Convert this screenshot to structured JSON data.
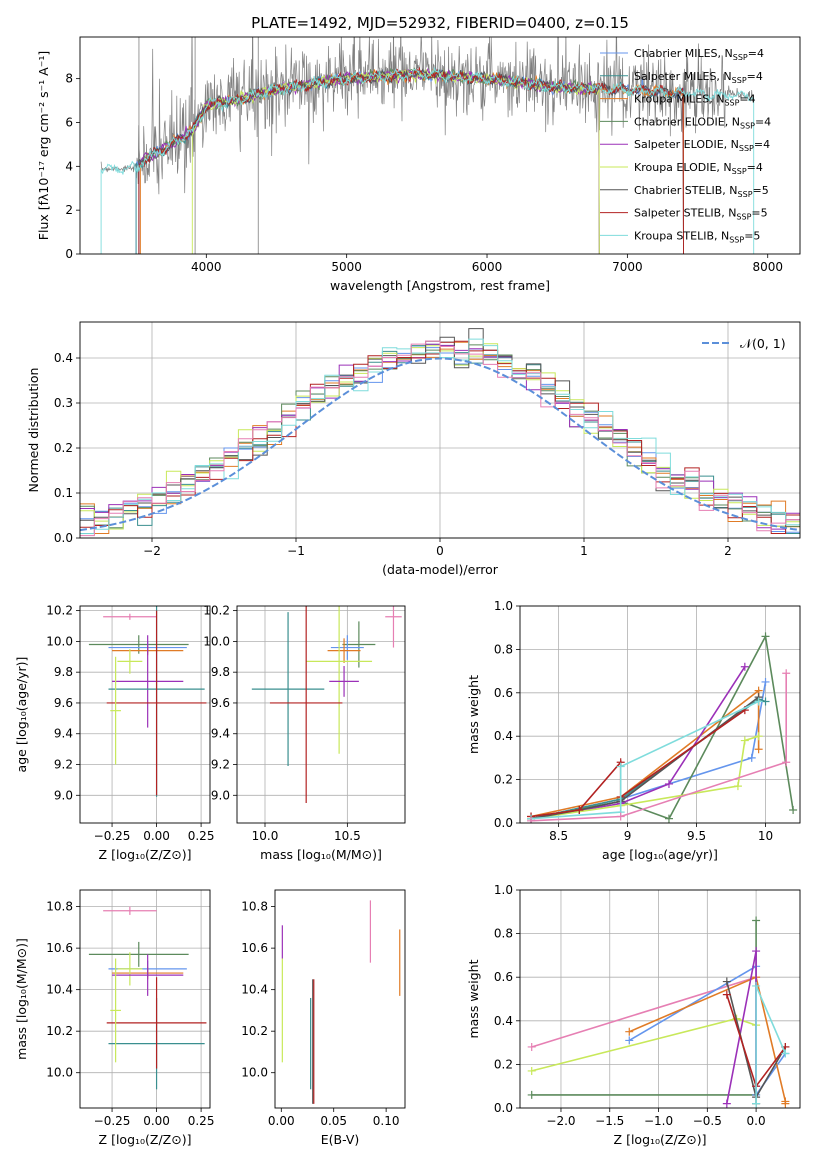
{
  "title": "PLATE=1492, MJD=52932, FIBERID=0400, z=0.15",
  "colors": {
    "Chabrier MILES": "#6495ed",
    "Salpeter MILES": "#3a8f8f",
    "Kroupa MILES": "#e07b26",
    "Chabrier ELODIE": "#5c8a5c",
    "Salpeter ELODIE": "#9b30b8",
    "Kroupa ELODIE": "#c8e85a",
    "Chabrier STELIB": "#555555",
    "Salpeter STELIB": "#b22222",
    "Kroupa STELIB": "#7fdcdc",
    "Kroupa STELIB b": "#e67fb3",
    "normal": "#5b8fd9"
  },
  "chart_data": [
    {
      "id": "spectrum",
      "type": "line",
      "xlabel": "wavelength [Angstrom, rest frame]",
      "ylabel": "Flux [fλ10⁻¹⁷ erg cm⁻² s⁻¹ A⁻¹]",
      "xlim": [
        3100,
        8230
      ],
      "ylim": [
        0,
        9.9
      ],
      "xticks": [
        4000,
        5000,
        6000,
        7000,
        8000
      ],
      "yticks": [
        0,
        2,
        4,
        6,
        8
      ],
      "legend_position": "top-right",
      "series": [
        {
          "name": "Chabrier MILES, N_SSP=4",
          "label": "Chabrier MILES, N",
          "sub": "SSP",
          "tail": "=4",
          "color": "#6495ed"
        },
        {
          "name": "Salpeter MILES, N_SSP=4",
          "label": "Salpeter MILES, N",
          "sub": "SSP",
          "tail": "=4",
          "color": "#3a8f8f"
        },
        {
          "name": "Kroupa MILES, N_SSP=4",
          "label": "Kroupa MILES, N",
          "sub": "SSP",
          "tail": "=4",
          "color": "#e07b26"
        },
        {
          "name": "Chabrier ELODIE, N_SSP=4",
          "label": "Chabrier ELODIE, N",
          "sub": "SSP",
          "tail": "=4",
          "color": "#5c8a5c"
        },
        {
          "name": "Salpeter ELODIE, N_SSP=4",
          "label": "Salpeter ELODIE, N",
          "sub": "SSP",
          "tail": "=4",
          "color": "#9b30b8"
        },
        {
          "name": "Kroupa ELODIE, N_SSP=4",
          "label": "Kroupa ELODIE, N",
          "sub": "SSP",
          "tail": "=4",
          "color": "#c8e85a"
        },
        {
          "name": "Chabrier STELIB, N_SSP=5",
          "label": "Chabrier STELIB, N",
          "sub": "SSP",
          "tail": "=5",
          "color": "#555555"
        },
        {
          "name": "Salpeter STELIB, N_SSP=5",
          "label": "Salpeter STELIB, N",
          "sub": "SSP",
          "tail": "=5",
          "color": "#b22222"
        },
        {
          "name": "Kroupa STELIB, N_SSP=5",
          "label": "Kroupa STELIB, N",
          "sub": "SSP",
          "tail": "=5",
          "color": "#7fdcdc"
        }
      ],
      "model_ranges": [
        [
          3500,
          7400
        ],
        [
          3500,
          7400
        ],
        [
          3530,
          7400
        ],
        [
          3520,
          6800
        ],
        [
          3520,
          6800
        ],
        [
          3900,
          6800
        ],
        [
          3520,
          7400
        ],
        [
          3520,
          7400
        ],
        [
          3250,
          7900
        ]
      ],
      "continuum_points": [
        [
          3250,
          3.9
        ],
        [
          3500,
          3.9
        ],
        [
          3550,
          4.3
        ],
        [
          3700,
          4.8
        ],
        [
          3900,
          5.6
        ],
        [
          4000,
          6.8
        ],
        [
          4200,
          7.0
        ],
        [
          4500,
          7.5
        ],
        [
          5000,
          8.0
        ],
        [
          5500,
          8.2
        ],
        [
          6000,
          8.0
        ],
        [
          6500,
          7.6
        ],
        [
          7000,
          7.5
        ],
        [
          7500,
          7.3
        ],
        [
          7900,
          7.2
        ]
      ]
    },
    {
      "id": "residuals",
      "type": "line",
      "xlabel": "(data-model)/error",
      "ylabel": "Normed distribution",
      "xlim": [
        -2.5,
        2.5
      ],
      "ylim": [
        0,
        0.48
      ],
      "xticks": [
        -2,
        -1,
        0,
        1,
        2
      ],
      "yticks": [
        0.0,
        0.1,
        0.2,
        0.3,
        0.4
      ],
      "xtick_labels": [
        "−2",
        "−1",
        "0",
        "1",
        "2"
      ],
      "grid": true,
      "legend": "𝒩(0, 1)",
      "legend_position": "top-right",
      "normal_curve": {
        "mean": 0,
        "sigma": 1
      }
    },
    {
      "id": "age_vs_Z",
      "type": "errorbar",
      "xlabel": "Z [log₁₀(Z/Z⊙)]",
      "ylabel": "age  [log₁₀(age/yr)]",
      "xlim": [
        -0.43,
        0.3
      ],
      "ylim": [
        8.82,
        10.23
      ],
      "xticks": [
        -0.25,
        0.0,
        0.25
      ],
      "yticks": [
        9.0,
        9.2,
        9.4,
        9.6,
        9.8,
        10.0,
        10.2
      ],
      "xtick_labels": [
        "−0.25",
        "0.00",
        "0.25"
      ],
      "grid": true,
      "points": [
        {
          "x": -0.15,
          "y": 10.16,
          "xerr": 0.15,
          "yerr": 0.02,
          "color": "#e67fb3"
        },
        {
          "x": -0.1,
          "y": 9.98,
          "xerr": 0.28,
          "yerr": 0.06,
          "color": "#5c8a5c"
        },
        {
          "x": -0.05,
          "y": 9.96,
          "xerr": 0.22,
          "yerr": 0.04,
          "color": "#6495ed"
        },
        {
          "x": -0.05,
          "y": 9.94,
          "xerr": 0.2,
          "yerr": 0.03,
          "color": "#e07b26"
        },
        {
          "x": -0.15,
          "y": 9.87,
          "xerr": 0.07,
          "yerr": 0.08,
          "color": "#c8e85a"
        },
        {
          "x": -0.05,
          "y": 9.74,
          "xerr": 0.2,
          "yerr": 0.3,
          "color": "#9b30b8"
        },
        {
          "x": 0.0,
          "y": 9.69,
          "xerr": 0.27,
          "yerr": 0.7,
          "color": "#3a8f8f"
        },
        {
          "x": 0.0,
          "y": 9.6,
          "xerr": 0.28,
          "yerr": 0.6,
          "color": "#b22222"
        },
        {
          "x": -0.23,
          "y": 9.55,
          "xerr": 0.03,
          "yerr": 0.35,
          "color": "#c8e85a"
        }
      ]
    },
    {
      "id": "age_vs_mass",
      "type": "errorbar",
      "xlabel": "mass [log₁₀(M/M⊙)]",
      "ylabel": "",
      "xlim": [
        9.83,
        10.85
      ],
      "ylim": [
        8.82,
        10.23
      ],
      "xticks": [
        10.0,
        10.5
      ],
      "yticks": [
        9.0,
        9.2,
        9.4,
        9.6,
        9.8,
        10.0,
        10.2
      ],
      "xtick_labels": [
        "10.0",
        "10.5"
      ],
      "grid": true,
      "points": [
        {
          "x": 10.78,
          "y": 10.16,
          "xerr": 0.05,
          "yerr": 0.2,
          "color": "#e67fb3"
        },
        {
          "x": 10.57,
          "y": 9.98,
          "xerr": 0.1,
          "yerr": 0.15,
          "color": "#5c8a5c"
        },
        {
          "x": 10.5,
          "y": 9.96,
          "xerr": 0.1,
          "yerr": 0.08,
          "color": "#6495ed"
        },
        {
          "x": 10.48,
          "y": 9.94,
          "xerr": 0.1,
          "yerr": 0.08,
          "color": "#e07b26"
        },
        {
          "x": 10.45,
          "y": 9.87,
          "xerr": 0.2,
          "yerr": 0.6,
          "color": "#c8e85a"
        },
        {
          "x": 10.48,
          "y": 9.74,
          "xerr": 0.09,
          "yerr": 0.1,
          "color": "#9b30b8"
        },
        {
          "x": 10.14,
          "y": 9.69,
          "xerr": 0.22,
          "yerr": 0.5,
          "color": "#3a8f8f"
        },
        {
          "x": 10.25,
          "y": 9.6,
          "xerr": 0.22,
          "yerr": 0.65,
          "color": "#b22222"
        }
      ]
    },
    {
      "id": "mass_weight_vs_age",
      "type": "line",
      "xlabel": "age  [log₁₀(age/yr)]",
      "ylabel": "mass weight",
      "xlim": [
        8.22,
        10.25
      ],
      "ylim": [
        0.0,
        1.0
      ],
      "xticks": [
        8.5,
        9.0,
        9.5,
        10.0
      ],
      "yticks": [
        0.0,
        0.2,
        0.4,
        0.6,
        0.8,
        1.0
      ],
      "grid": true,
      "series": [
        {
          "color": "#6495ed",
          "x": [
            8.3,
            8.95,
            9.9,
            10.0
          ],
          "y": [
            0.02,
            0.11,
            0.3,
            0.65
          ]
        },
        {
          "color": "#3a8f8f",
          "x": [
            8.3,
            8.95,
            9.95,
            10.0
          ],
          "y": [
            0.02,
            0.11,
            0.57,
            0.56
          ]
        },
        {
          "color": "#e07b26",
          "x": [
            8.3,
            8.95,
            9.95,
            9.95
          ],
          "y": [
            0.03,
            0.12,
            0.61,
            0.34
          ]
        },
        {
          "color": "#5c8a5c",
          "x": [
            8.3,
            8.95,
            9.3,
            10.0,
            10.2
          ],
          "y": [
            0.02,
            0.1,
            0.02,
            0.86,
            0.06
          ]
        },
        {
          "color": "#9b30b8",
          "x": [
            8.3,
            8.95,
            9.3,
            9.85
          ],
          "y": [
            0.02,
            0.09,
            0.18,
            0.72
          ]
        },
        {
          "color": "#c8e85a",
          "x": [
            8.3,
            8.95,
            9.8,
            9.85,
            9.95
          ],
          "y": [
            0.02,
            0.08,
            0.17,
            0.38,
            0.4
          ]
        },
        {
          "color": "#555555",
          "x": [
            8.3,
            8.65,
            8.95,
            9.95
          ],
          "y": [
            0.02,
            0.06,
            0.1,
            0.58
          ]
        },
        {
          "color": "#b22222",
          "x": [
            8.3,
            8.65,
            8.95,
            8.95,
            9.85
          ],
          "y": [
            0.03,
            0.06,
            0.28,
            0.12,
            0.52
          ]
        },
        {
          "color": "#7fdcdc",
          "x": [
            8.3,
            8.95,
            8.95,
            9.95
          ],
          "y": [
            0.02,
            0.05,
            0.26,
            0.56
          ]
        },
        {
          "color": "#e67fb3",
          "x": [
            8.3,
            8.95,
            10.15,
            10.15
          ],
          "y": [
            0.01,
            0.03,
            0.28,
            0.69
          ]
        }
      ]
    },
    {
      "id": "mass_vs_Z",
      "type": "errorbar",
      "xlabel": "Z [log₁₀(Z/Z⊙)]",
      "ylabel": "mass [log₁₀(M/M⊙)]",
      "xlim": [
        -0.43,
        0.3
      ],
      "ylim": [
        9.83,
        10.88
      ],
      "xticks": [
        -0.25,
        0.0,
        0.25
      ],
      "yticks": [
        10.0,
        10.2,
        10.4,
        10.6,
        10.8
      ],
      "xtick_labels": [
        "−0.25",
        "0.00",
        "0.25"
      ],
      "grid": true,
      "points": [
        {
          "x": -0.15,
          "y": 10.78,
          "xerr": 0.15,
          "yerr": 0.02,
          "color": "#e67fb3"
        },
        {
          "x": -0.1,
          "y": 10.57,
          "xerr": 0.28,
          "yerr": 0.06,
          "color": "#5c8a5c"
        },
        {
          "x": -0.05,
          "y": 10.5,
          "xerr": 0.22,
          "yerr": 0.04,
          "color": "#6495ed"
        },
        {
          "x": -0.05,
          "y": 10.48,
          "xerr": 0.2,
          "yerr": 0.03,
          "color": "#e07b26"
        },
        {
          "x": -0.15,
          "y": 10.5,
          "xerr": 0.07,
          "yerr": 0.08,
          "color": "#c8e85a"
        },
        {
          "x": -0.05,
          "y": 10.47,
          "xerr": 0.2,
          "yerr": 0.1,
          "color": "#9b30b8"
        },
        {
          "x": 0.0,
          "y": 10.14,
          "xerr": 0.27,
          "yerr": 0.22,
          "color": "#3a8f8f"
        },
        {
          "x": 0.0,
          "y": 10.24,
          "xerr": 0.28,
          "yerr": 0.22,
          "color": "#b22222"
        },
        {
          "x": -0.23,
          "y": 10.3,
          "xerr": 0.03,
          "yerr": 0.25,
          "color": "#c8e85a"
        }
      ]
    },
    {
      "id": "mass_vs_EBV",
      "type": "errorbar",
      "xlabel": "E(B-V)",
      "ylabel": "",
      "xlim": [
        -0.006,
        0.118
      ],
      "ylim": [
        9.83,
        10.88
      ],
      "xticks": [
        0.0,
        0.05,
        0.1
      ],
      "yticks": [
        10.0,
        10.2,
        10.4,
        10.6,
        10.8
      ],
      "xtick_labels": [
        "0.00",
        "0.05",
        "0.10"
      ],
      "grid": false,
      "points": [
        {
          "x": 0.001,
          "y": 10.63,
          "xerr": 0,
          "yerr": 0.08,
          "color": "#9b30b8"
        },
        {
          "x": 0.001,
          "y": 10.3,
          "xerr": 0,
          "yerr": 0.25,
          "color": "#c8e85a"
        },
        {
          "x": 0.028,
          "y": 10.14,
          "xerr": 0,
          "yerr": 0.22,
          "color": "#3a8f8f"
        },
        {
          "x": 0.03,
          "y": 10.15,
          "xerr": 0,
          "yerr": 0.3,
          "color": "#555555"
        },
        {
          "x": 0.031,
          "y": 10.15,
          "xerr": 0,
          "yerr": 0.3,
          "color": "#b22222"
        },
        {
          "x": 0.085,
          "y": 10.68,
          "xerr": 0,
          "yerr": 0.15,
          "color": "#e67fb3"
        },
        {
          "x": 0.113,
          "y": 10.53,
          "xerr": 0,
          "yerr": 0.16,
          "color": "#e07b26"
        }
      ]
    },
    {
      "id": "mass_weight_vs_Z",
      "type": "line",
      "xlabel": "Z [log₁₀(Z/Z⊙)]",
      "ylabel": "mass weight",
      "xlim": [
        -2.42,
        0.45
      ],
      "ylim": [
        0.0,
        1.0
      ],
      "xticks": [
        -2.0,
        -1.5,
        -1.0,
        -0.5,
        0.0
      ],
      "yticks": [
        0.0,
        0.2,
        0.4,
        0.6,
        0.8,
        1.0
      ],
      "xtick_labels": [
        "−2.0",
        "−1.5",
        "−1.0",
        "−0.5",
        "0.0"
      ],
      "grid": true,
      "series": [
        {
          "color": "#e67fb3",
          "x": [
            -2.3,
            0.0,
            0.0
          ],
          "y": [
            0.28,
            0.6,
            0.02
          ]
        },
        {
          "color": "#c8e85a",
          "x": [
            -2.3,
            -0.2,
            0.0
          ],
          "y": [
            0.17,
            0.41,
            0.38
          ]
        },
        {
          "color": "#5c8a5c",
          "x": [
            -2.3,
            0.0,
            0.0,
            0.0
          ],
          "y": [
            0.06,
            0.06,
            0.86,
            0.02
          ]
        },
        {
          "color": "#6495ed",
          "x": [
            -1.3,
            0.0,
            0.0,
            0.3
          ],
          "y": [
            0.31,
            0.65,
            0.06,
            0.25
          ]
        },
        {
          "color": "#e07b26",
          "x": [
            -1.3,
            0.0,
            0.3,
            0.3
          ],
          "y": [
            0.35,
            0.6,
            0.03,
            0.02
          ]
        },
        {
          "color": "#9b30b8",
          "x": [
            -0.3,
            0.0,
            0.0
          ],
          "y": [
            0.02,
            0.72,
            0.1
          ]
        },
        {
          "color": "#555555",
          "x": [
            -0.3,
            0.0,
            0.3
          ],
          "y": [
            0.58,
            0.05,
            0.28
          ]
        },
        {
          "color": "#b22222",
          "x": [
            -0.3,
            0.0,
            0.3
          ],
          "y": [
            0.52,
            0.1,
            0.28
          ]
        },
        {
          "color": "#7fdcdc",
          "x": [
            0.0,
            0.0,
            0.3
          ],
          "y": [
            0.02,
            0.56,
            0.25
          ]
        }
      ]
    }
  ]
}
